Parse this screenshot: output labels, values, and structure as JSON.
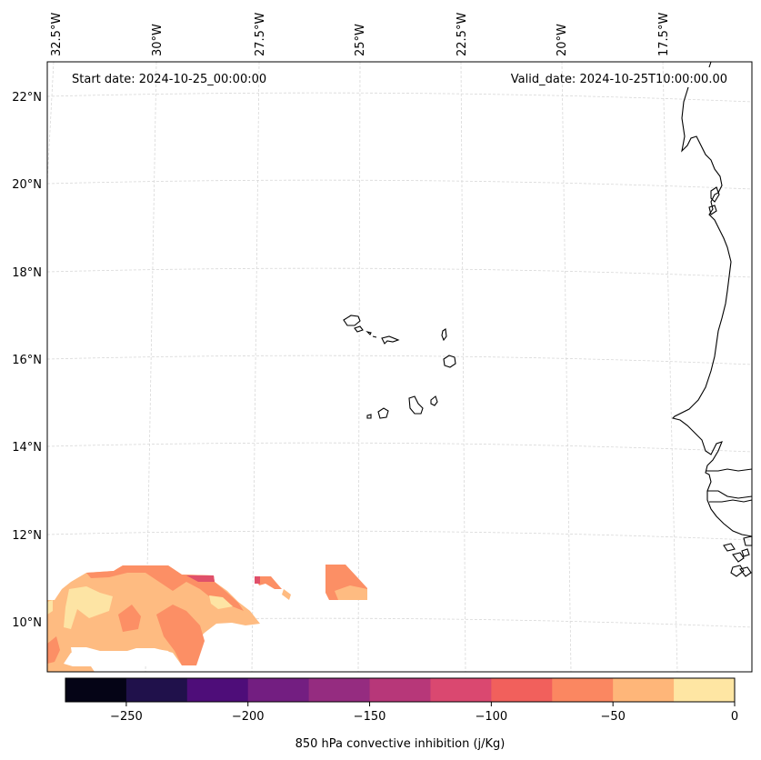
{
  "map": {
    "start_date": "Start date: 2024-10-25_00:00:00",
    "valid_date": "Valid_date: 2024-10-25T10:00:00.00",
    "lon_labels": [
      "32.5°W",
      "30°W",
      "27.5°W",
      "25°W",
      "22.5°W",
      "20°W",
      "17.5°W"
    ],
    "lat_labels": [
      "22°N",
      "20°N",
      "18°N",
      "16°N",
      "14°N",
      "12°N",
      "10°N"
    ],
    "field_colors": {
      "level_-150": "#c83f73",
      "level_-125": "#e0506a",
      "level_-100": "#f26b5e",
      "level_-75": "#fc8f65",
      "level_-50": "#febb81",
      "level_-25": "#fde4a4"
    },
    "coastline_color": "#000000",
    "grid_color": "#d8d8d8"
  },
  "colorbar": {
    "label": "850 hPa convective inhibition (j/Kg)",
    "tick_labels": [
      "−250",
      "−200",
      "−150",
      "−100",
      "−50",
      "0"
    ],
    "range": [
      -275,
      0
    ],
    "colors": [
      "#050416",
      "#20114b",
      "#4e0d79",
      "#731e81",
      "#952c80",
      "#b73779",
      "#da4870",
      "#f1605c",
      "#fb8761",
      "#feb679",
      "#fee6a3"
    ]
  }
}
